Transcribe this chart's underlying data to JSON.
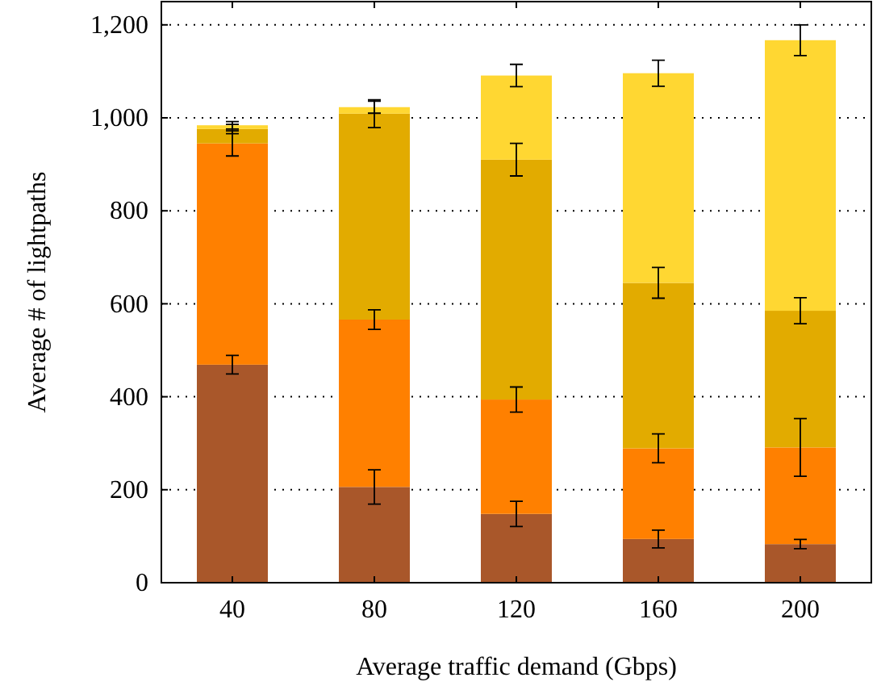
{
  "chart_data": {
    "type": "bar",
    "stacked": true,
    "xlabel": "Average traffic demand (Gbps)",
    "ylabel": "Average # of lightpaths",
    "categories": [
      "40",
      "80",
      "120",
      "160",
      "200"
    ],
    "series": [
      {
        "color": "#a9572a",
        "values": [
          469,
          206,
          148,
          94,
          83
        ],
        "errors": [
          20,
          37,
          27,
          19,
          10
        ]
      },
      {
        "color": "#ff8000",
        "values": [
          476,
          360,
          246,
          195,
          208
        ],
        "errors": [
          27,
          21,
          27,
          31,
          62
        ]
      },
      {
        "color": "#e2ab00",
        "values": [
          31,
          443,
          516,
          356,
          294
        ],
        "errors": [
          10,
          30,
          35,
          33,
          28
        ]
      },
      {
        "color": "#ffd732",
        "values": [
          8,
          14,
          181,
          451,
          582
        ],
        "errors": [
          8,
          13,
          24,
          28,
          33
        ]
      }
    ],
    "ylim": [
      0,
      1250
    ],
    "yticks": [
      0,
      {
        "value": 200,
        "label": "200"
      },
      {
        "value": 400,
        "label": "400"
      },
      {
        "value": 600,
        "label": "600"
      },
      {
        "value": 800,
        "label": "800"
      },
      {
        "value": 1000,
        "label": "1,000"
      },
      {
        "value": 1200,
        "label": "1,200"
      }
    ],
    "grid": "y"
  }
}
